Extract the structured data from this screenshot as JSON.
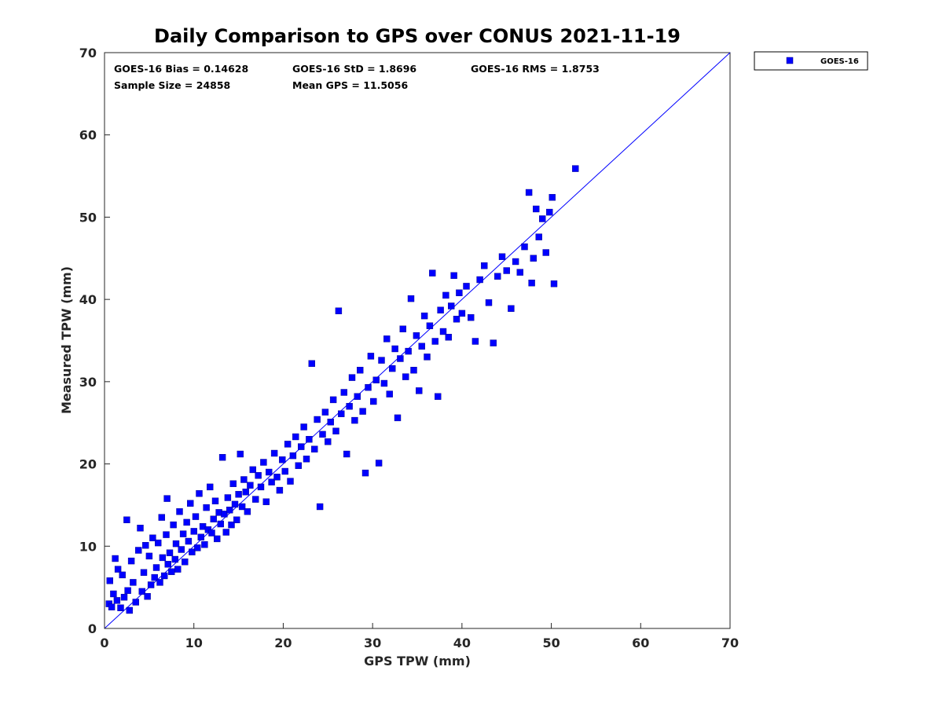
{
  "chart_data": {
    "type": "scatter",
    "title": "Daily Comparison to GPS over CONUS 2021-11-19",
    "xlabel": "GPS TPW (mm)",
    "ylabel": "Measured TPW (mm)",
    "xlim": [
      0,
      70
    ],
    "ylim": [
      0,
      70
    ],
    "xticks": [
      "0",
      "10",
      "20",
      "30",
      "40",
      "50",
      "60",
      "70"
    ],
    "yticks": [
      "0",
      "10",
      "20",
      "30",
      "40",
      "50",
      "60",
      "70"
    ],
    "grid": false,
    "legend_position": "outside-top-right",
    "reference_line": {
      "label": "1:1",
      "color": "#0000ff"
    },
    "stats": {
      "bias": "GOES-16 Bias = 0.14628",
      "std": "GOES-16 StD = 1.8696",
      "rms": "GOES-16 RMS = 1.8753",
      "sample_size": "Sample Size = 24858",
      "mean_gps": "Mean GPS = 11.5056"
    },
    "series": [
      {
        "name": "GOES-16",
        "color": "#0000ff",
        "marker": "square",
        "points": [
          [
            0.5,
            3.0
          ],
          [
            0.6,
            5.8
          ],
          [
            0.8,
            2.6
          ],
          [
            1.0,
            4.2
          ],
          [
            1.2,
            8.5
          ],
          [
            1.4,
            3.4
          ],
          [
            1.5,
            7.2
          ],
          [
            1.8,
            2.5
          ],
          [
            2.0,
            6.5
          ],
          [
            2.2,
            3.8
          ],
          [
            2.5,
            13.2
          ],
          [
            2.6,
            4.6
          ],
          [
            2.8,
            2.2
          ],
          [
            3.0,
            8.2
          ],
          [
            3.2,
            5.6
          ],
          [
            3.5,
            3.2
          ],
          [
            3.8,
            9.5
          ],
          [
            4.0,
            12.2
          ],
          [
            4.2,
            4.5
          ],
          [
            4.4,
            6.8
          ],
          [
            4.6,
            10.1
          ],
          [
            4.8,
            3.9
          ],
          [
            5.0,
            8.8
          ],
          [
            5.2,
            5.3
          ],
          [
            5.4,
            11.0
          ],
          [
            5.6,
            6.2
          ],
          [
            5.8,
            7.4
          ],
          [
            6.0,
            10.4
          ],
          [
            6.2,
            5.6
          ],
          [
            6.4,
            13.5
          ],
          [
            6.5,
            8.6
          ],
          [
            6.7,
            6.4
          ],
          [
            6.9,
            11.4
          ],
          [
            7.0,
            15.8
          ],
          [
            7.1,
            7.8
          ],
          [
            7.3,
            9.2
          ],
          [
            7.5,
            6.9
          ],
          [
            7.7,
            12.6
          ],
          [
            7.9,
            8.4
          ],
          [
            8.0,
            10.3
          ],
          [
            8.2,
            7.2
          ],
          [
            8.4,
            14.2
          ],
          [
            8.6,
            9.6
          ],
          [
            8.8,
            11.5
          ],
          [
            9.0,
            8.1
          ],
          [
            9.2,
            12.9
          ],
          [
            9.4,
            10.6
          ],
          [
            9.6,
            15.2
          ],
          [
            9.8,
            9.3
          ],
          [
            10.0,
            11.8
          ],
          [
            10.2,
            13.6
          ],
          [
            10.4,
            9.8
          ],
          [
            10.6,
            16.4
          ],
          [
            10.8,
            11.1
          ],
          [
            11.0,
            12.4
          ],
          [
            11.2,
            10.2
          ],
          [
            11.4,
            14.7
          ],
          [
            11.6,
            12.0
          ],
          [
            11.8,
            17.2
          ],
          [
            12.0,
            11.6
          ],
          [
            12.2,
            13.3
          ],
          [
            12.4,
            15.5
          ],
          [
            12.6,
            10.9
          ],
          [
            12.8,
            14.1
          ],
          [
            13.0,
            12.7
          ],
          [
            13.2,
            20.8
          ],
          [
            13.4,
            13.9
          ],
          [
            13.6,
            11.7
          ],
          [
            13.8,
            15.9
          ],
          [
            14.0,
            14.4
          ],
          [
            14.2,
            12.6
          ],
          [
            14.4,
            17.6
          ],
          [
            14.6,
            15.1
          ],
          [
            14.8,
            13.2
          ],
          [
            15.0,
            16.3
          ],
          [
            15.2,
            21.2
          ],
          [
            15.4,
            14.8
          ],
          [
            15.6,
            18.1
          ],
          [
            15.8,
            16.6
          ],
          [
            16.0,
            14.2
          ],
          [
            16.3,
            17.4
          ],
          [
            16.6,
            19.3
          ],
          [
            16.9,
            15.7
          ],
          [
            17.2,
            18.6
          ],
          [
            17.5,
            17.2
          ],
          [
            17.8,
            20.2
          ],
          [
            18.1,
            15.4
          ],
          [
            18.4,
            19.0
          ],
          [
            18.7,
            17.8
          ],
          [
            19.0,
            21.3
          ],
          [
            19.3,
            18.4
          ],
          [
            19.6,
            16.8
          ],
          [
            19.9,
            20.5
          ],
          [
            20.2,
            19.1
          ],
          [
            20.5,
            22.4
          ],
          [
            20.8,
            17.9
          ],
          [
            21.1,
            21.0
          ],
          [
            21.4,
            23.3
          ],
          [
            21.7,
            19.8
          ],
          [
            22.0,
            22.1
          ],
          [
            22.3,
            24.5
          ],
          [
            22.6,
            20.6
          ],
          [
            22.9,
            23.0
          ],
          [
            23.2,
            32.2
          ],
          [
            23.5,
            21.8
          ],
          [
            23.8,
            25.4
          ],
          [
            24.1,
            14.8
          ],
          [
            24.4,
            23.6
          ],
          [
            24.7,
            26.3
          ],
          [
            25.0,
            22.7
          ],
          [
            25.3,
            25.1
          ],
          [
            25.6,
            27.8
          ],
          [
            25.9,
            24.0
          ],
          [
            26.2,
            38.6
          ],
          [
            26.5,
            26.1
          ],
          [
            26.8,
            28.7
          ],
          [
            27.1,
            21.2
          ],
          [
            27.4,
            27.0
          ],
          [
            27.7,
            30.5
          ],
          [
            28.0,
            25.3
          ],
          [
            28.3,
            28.2
          ],
          [
            28.6,
            31.4
          ],
          [
            28.9,
            26.4
          ],
          [
            29.2,
            18.9
          ],
          [
            29.5,
            29.3
          ],
          [
            29.8,
            33.1
          ],
          [
            30.1,
            27.6
          ],
          [
            30.4,
            30.2
          ],
          [
            30.7,
            20.1
          ],
          [
            31.0,
            32.6
          ],
          [
            31.3,
            29.8
          ],
          [
            31.6,
            35.2
          ],
          [
            31.9,
            28.5
          ],
          [
            32.2,
            31.6
          ],
          [
            32.5,
            34.0
          ],
          [
            32.8,
            25.6
          ],
          [
            33.1,
            32.8
          ],
          [
            33.4,
            36.4
          ],
          [
            33.7,
            30.6
          ],
          [
            34.0,
            33.7
          ],
          [
            34.3,
            40.1
          ],
          [
            34.6,
            31.4
          ],
          [
            34.9,
            35.6
          ],
          [
            35.2,
            28.9
          ],
          [
            35.5,
            34.3
          ],
          [
            35.8,
            38.0
          ],
          [
            36.1,
            33.0
          ],
          [
            36.4,
            36.8
          ],
          [
            36.7,
            43.2
          ],
          [
            37.0,
            34.9
          ],
          [
            37.3,
            28.2
          ],
          [
            37.6,
            38.7
          ],
          [
            37.9,
            36.1
          ],
          [
            38.2,
            40.5
          ],
          [
            38.5,
            35.4
          ],
          [
            38.8,
            39.2
          ],
          [
            39.1,
            42.9
          ],
          [
            39.4,
            37.6
          ],
          [
            39.7,
            40.8
          ],
          [
            40.0,
            38.3
          ],
          [
            40.5,
            41.6
          ],
          [
            41.0,
            37.8
          ],
          [
            41.5,
            34.9
          ],
          [
            42.0,
            42.4
          ],
          [
            42.5,
            44.1
          ],
          [
            43.0,
            39.6
          ],
          [
            43.5,
            34.7
          ],
          [
            44.0,
            42.8
          ],
          [
            44.5,
            45.2
          ],
          [
            45.0,
            43.5
          ],
          [
            45.5,
            38.9
          ],
          [
            46.0,
            44.6
          ],
          [
            46.5,
            43.3
          ],
          [
            47.0,
            46.4
          ],
          [
            47.5,
            53.0
          ],
          [
            47.8,
            42.0
          ],
          [
            48.0,
            45.0
          ],
          [
            48.3,
            51.0
          ],
          [
            48.6,
            47.6
          ],
          [
            49.0,
            49.8
          ],
          [
            49.4,
            45.7
          ],
          [
            49.8,
            50.6
          ],
          [
            50.1,
            52.4
          ],
          [
            50.3,
            41.9
          ],
          [
            52.7,
            55.9
          ]
        ]
      }
    ]
  }
}
